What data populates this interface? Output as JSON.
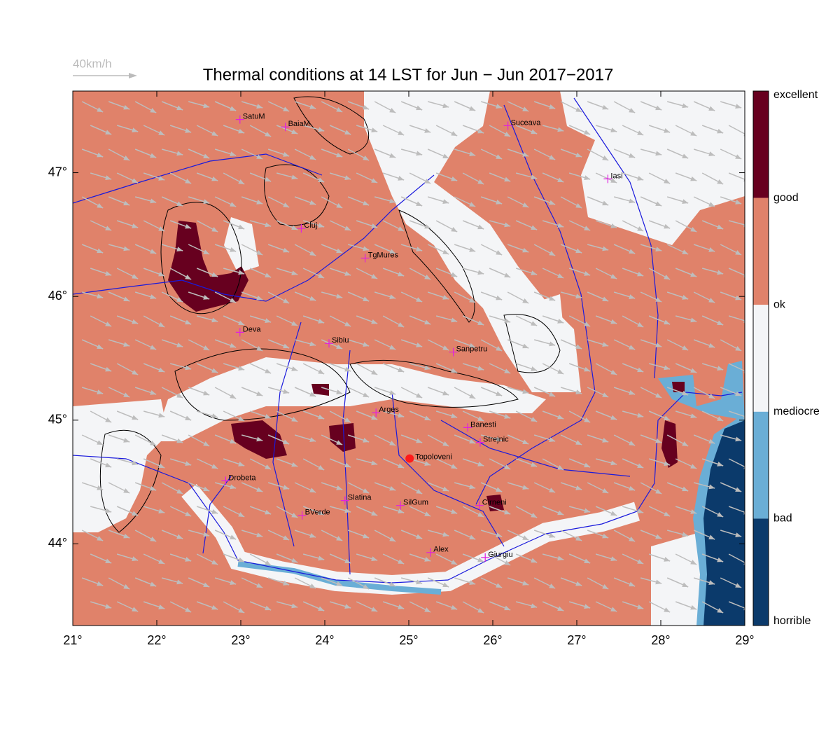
{
  "header": {
    "title": "Thermal conditions at 14 LST for Jun − Jun  2017−2017",
    "wind_scale": "40km/h"
  },
  "map": {
    "xlim": [
      21,
      29
    ],
    "ylim": [
      43.34,
      47.66
    ],
    "xticks": [
      {
        "value": 21,
        "label": "21°"
      },
      {
        "value": 22,
        "label": "22°"
      },
      {
        "value": 23,
        "label": "23°"
      },
      {
        "value": 24,
        "label": "24°"
      },
      {
        "value": 25,
        "label": "25°"
      },
      {
        "value": 26,
        "label": "26°"
      },
      {
        "value": 27,
        "label": "27°"
      },
      {
        "value": 28,
        "label": "28°"
      },
      {
        "value": 29,
        "label": "29°"
      }
    ],
    "yticks": [
      {
        "value": 44,
        "label": "44°"
      },
      {
        "value": 45,
        "label": "45°"
      },
      {
        "value": 46,
        "label": "46°"
      },
      {
        "value": 47,
        "label": "47°"
      }
    ]
  },
  "legend": {
    "labels": [
      "excellent",
      "good",
      "ok",
      "mediocre",
      "bad",
      "horrible"
    ],
    "colors": [
      "#67001f",
      "#e0826a",
      "#f4f5f7",
      "#6aaed6",
      "#0b3a6b"
    ]
  },
  "cities": [
    {
      "name": "SatuM",
      "lon": 22.99,
      "lat": 47.43
    },
    {
      "name": "BaiaM",
      "lon": 23.53,
      "lat": 47.37
    },
    {
      "name": "Suceava",
      "lon": 26.18,
      "lat": 47.38
    },
    {
      "name": "Iasi",
      "lon": 27.37,
      "lat": 46.95
    },
    {
      "name": "Cluj",
      "lon": 23.72,
      "lat": 46.55
    },
    {
      "name": "TgMures",
      "lon": 24.48,
      "lat": 46.31
    },
    {
      "name": "Deva",
      "lon": 22.99,
      "lat": 45.71
    },
    {
      "name": "Sibiu",
      "lon": 24.05,
      "lat": 45.62
    },
    {
      "name": "Sanpetru",
      "lon": 25.53,
      "lat": 45.55
    },
    {
      "name": "Arges",
      "lon": 24.61,
      "lat": 45.06
    },
    {
      "name": "Banesti",
      "lon": 25.7,
      "lat": 44.94
    },
    {
      "name": "Strejnic",
      "lon": 25.85,
      "lat": 44.82
    },
    {
      "name": "Drobeta",
      "lon": 22.82,
      "lat": 44.51
    },
    {
      "name": "Slatina",
      "lon": 24.24,
      "lat": 44.35
    },
    {
      "name": "SilGum",
      "lon": 24.9,
      "lat": 44.31
    },
    {
      "name": "BVerde",
      "lon": 23.73,
      "lat": 44.23
    },
    {
      "name": "Cirneni",
      "lon": 25.84,
      "lat": 44.31
    },
    {
      "name": "Alex",
      "lon": 25.26,
      "lat": 43.93
    },
    {
      "name": "Giurgiu",
      "lon": 25.91,
      "lat": 43.89
    }
  ],
  "site": {
    "name": "Topoloveni",
    "lon": 25.01,
    "lat": 44.69
  }
}
